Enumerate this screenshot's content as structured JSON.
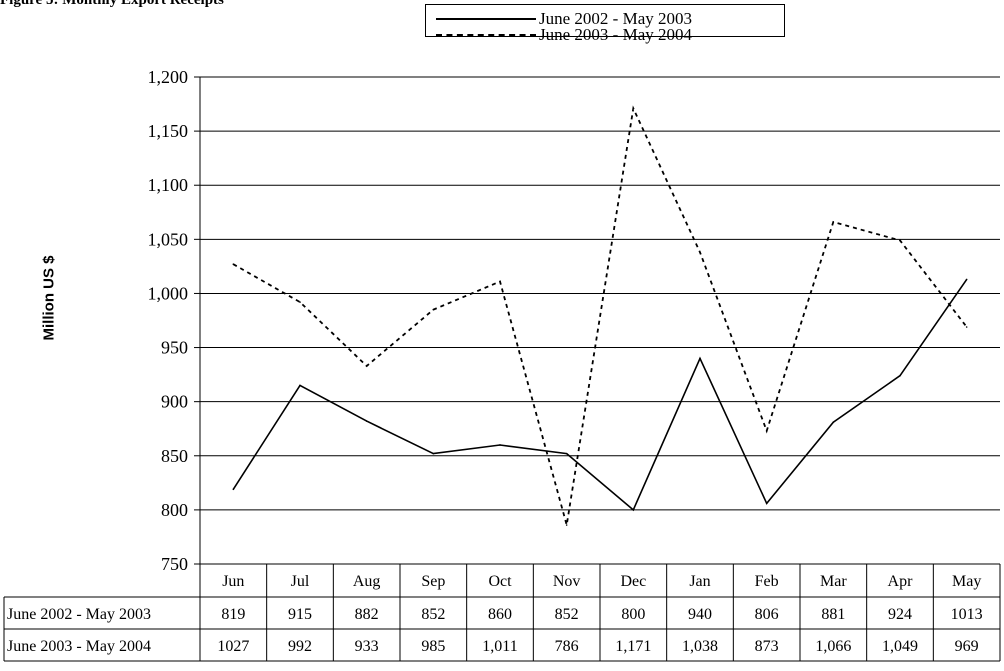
{
  "figure_title": "Figure 5: Monthly Export Receipts",
  "chart_data": {
    "type": "line",
    "title": "Figure 5: Monthly Export Receipts",
    "ylabel": "Million US $",
    "xlabel": "",
    "ylim": [
      750,
      1200
    ],
    "yticks": [
      750,
      800,
      850,
      900,
      950,
      1000,
      1050,
      1100,
      1150,
      1200
    ],
    "ytick_labels": [
      "750",
      "800",
      "850",
      "900",
      "950",
      "1,000",
      "1,050",
      "1,100",
      "1,150",
      "1,200"
    ],
    "grid": "horizontal",
    "legend_position": "top",
    "categories": [
      "Jun",
      "Jul",
      "Aug",
      "Sep",
      "Oct",
      "Nov",
      "Dec",
      "Jan",
      "Feb",
      "Mar",
      "Apr",
      "May"
    ],
    "series": [
      {
        "name": "June 2002 - May 2003",
        "line_style": "solid",
        "color": "#000000",
        "values": [
          819,
          915,
          882,
          852,
          860,
          852,
          800,
          940,
          806,
          881,
          924,
          1013
        ],
        "table_labels": [
          "819",
          "915",
          "882",
          "852",
          "860",
          "852",
          "800",
          "940",
          "806",
          "881",
          "924",
          "1013"
        ]
      },
      {
        "name": "June 2003 - May 2004",
        "line_style": "dotted",
        "color": "#000000",
        "values": [
          1027,
          992,
          933,
          985,
          1011,
          786,
          1171,
          1038,
          873,
          1066,
          1049,
          969
        ],
        "table_labels": [
          "1027",
          "992",
          "933",
          "985",
          "1,011",
          "786",
          "1,171",
          "1,038",
          "873",
          "1,066",
          "1,049",
          "969"
        ]
      }
    ]
  }
}
